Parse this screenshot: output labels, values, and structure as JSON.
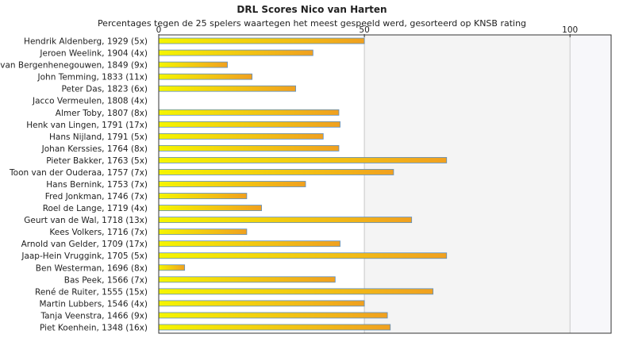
{
  "chart_data": {
    "type": "bar",
    "orientation": "horizontal",
    "title": "DRL Scores Nico van Harten",
    "subtitle": "Percentages tegen de 25 spelers waartegen het meest gespeeld werd, gesorteerd op KNSB rating",
    "xlim": [
      0,
      110
    ],
    "xticks": [
      0,
      50,
      100
    ],
    "categories": [
      "Hendrik Aldenberg, 1929 (5x)",
      "Jeroen Weelink, 1904 (4x)",
      "van Bergenhenegouwen, 1849 (9x)",
      "John Temming, 1833 (11x)",
      "Peter Das, 1823 (6x)",
      "Jacco Vermeulen, 1808 (4x)",
      "Almer Toby, 1807 (8x)",
      "Henk van Lingen, 1791 (17x)",
      "Hans Nijland, 1791 (5x)",
      "Johan Kerssies, 1764 (8x)",
      "Pieter Bakker, 1763 (5x)",
      "Toon van der Ouderaa, 1757 (7x)",
      "Hans Bernink, 1753 (7x)",
      "Fred Jonkman, 1746 (7x)",
      "Roel de Lange, 1719 (4x)",
      "Geurt van de Wal, 1718 (13x)",
      "Kees Volkers, 1716 (7x)",
      "Arnold van Gelder, 1709 (17x)",
      "Jaap-Hein Vruggink, 1705 (5x)",
      "Ben Westerman, 1696 (8x)",
      "Bas Peek, 1566 (7x)",
      "René de Ruiter, 1555 (15x)",
      "Martin Lubbers, 1546 (4x)",
      "Tanja Veenstra, 1466 (9x)",
      "Piet Koenhein, 1348 (16x)"
    ],
    "values": [
      50,
      37.5,
      16.7,
      22.7,
      33.3,
      0,
      43.8,
      44.1,
      40,
      43.8,
      70,
      57.1,
      35.7,
      21.4,
      25,
      61.5,
      21.4,
      44.1,
      70,
      6.3,
      42.9,
      66.7,
      50,
      55.6,
      56.3
    ],
    "grid": true,
    "colors": {
      "bar_start": "#f5f500",
      "bar_end": "#f0a020",
      "bar_stroke": "#5b8fc4",
      "band_light": "#ffffff",
      "band_mid": "#f4f4f4",
      "band_right": "#f7f7fa",
      "axis": "#333333",
      "grid": "#c8c8c8"
    }
  }
}
